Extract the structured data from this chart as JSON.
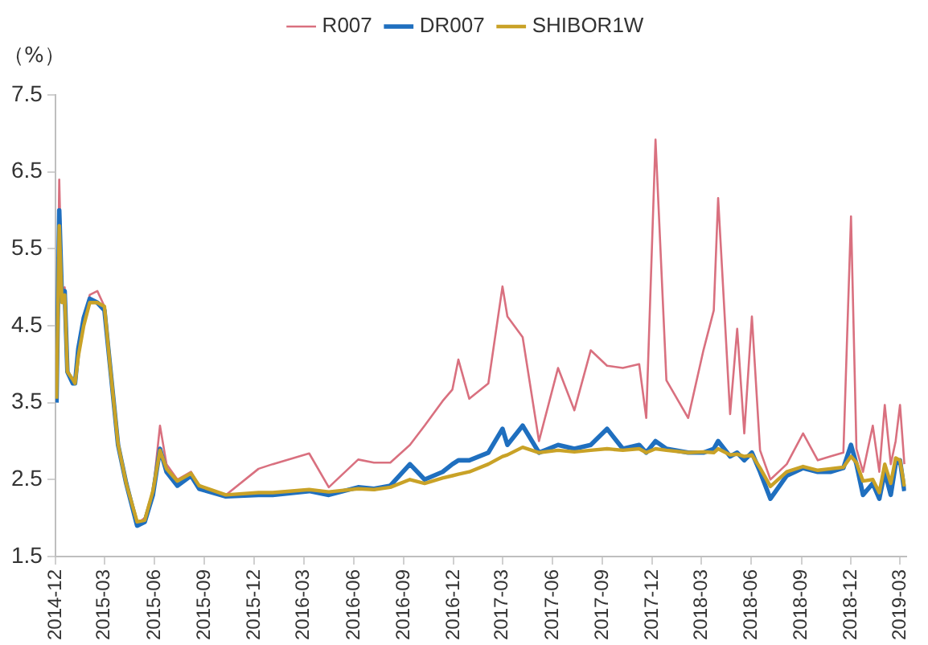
{
  "chart_data": {
    "type": "line",
    "ylabel": "（%）",
    "legend": "top",
    "grid": false,
    "marker": "none",
    "line_style": "solid",
    "xlim": [
      "2014-12-01",
      "2019-03-12"
    ],
    "xticks": [
      "2014-12",
      "2015-03",
      "2015-06",
      "2015-09",
      "2015-12",
      "2016-03",
      "2016-06",
      "2016-09",
      "2016-12",
      "2017-03",
      "2017-06",
      "2017-09",
      "2017-12",
      "2018-03",
      "2018-06",
      "2018-09",
      "2018-12",
      "2019-03"
    ],
    "ylim": [
      1.5,
      7.5
    ],
    "yticks": [
      1.5,
      2.5,
      3.5,
      4.5,
      5.5,
      6.5,
      7.5
    ],
    "x": [
      "2014-12-03",
      "2014-12-08",
      "2014-12-13",
      "2014-12-18",
      "2014-12-23",
      "2015-01-02",
      "2015-01-06",
      "2015-01-12",
      "2015-01-22",
      "2015-02-02",
      "2015-02-16",
      "2015-03-01",
      "2015-03-11",
      "2015-03-26",
      "2015-04-10",
      "2015-04-30",
      "2015-05-14",
      "2015-05-29",
      "2015-06-11",
      "2015-06-23",
      "2015-07-13",
      "2015-08-07",
      "2015-08-22",
      "2015-10-10",
      "2015-12-09",
      "2016-01-04",
      "2016-03-11",
      "2016-04-16",
      "2016-06-09",
      "2016-07-08",
      "2016-08-07",
      "2016-09-12",
      "2016-10-09",
      "2016-11-11",
      "2016-11-29",
      "2016-12-10",
      "2016-12-30",
      "2017-02-03",
      "2017-03-01",
      "2017-03-10",
      "2017-04-07",
      "2017-05-07",
      "2017-06-11",
      "2017-07-11",
      "2017-08-10",
      "2017-09-09",
      "2017-10-08",
      "2017-11-07",
      "2017-11-20",
      "2017-12-07",
      "2017-12-27",
      "2018-02-05",
      "2018-03-05",
      "2018-03-24",
      "2018-04-01",
      "2018-04-23",
      "2018-05-06",
      "2018-05-19",
      "2018-06-02",
      "2018-06-17",
      "2018-07-06",
      "2018-08-05",
      "2018-09-04",
      "2018-10-01",
      "2018-10-24",
      "2018-11-17",
      "2018-12-01",
      "2018-12-11",
      "2018-12-23",
      "2019-01-10",
      "2019-01-22",
      "2019-02-01",
      "2019-02-12",
      "2019-02-21",
      "2019-03-01",
      "2019-03-09"
    ],
    "series": [
      {
        "name": "R007",
        "color": "#d9707f",
        "values": [
          3.6,
          6.4,
          4.9,
          5.0,
          3.9,
          3.75,
          3.75,
          4.15,
          4.55,
          4.9,
          4.95,
          4.75,
          4.0,
          2.95,
          2.45,
          1.93,
          2.0,
          2.33,
          3.2,
          2.7,
          2.5,
          2.6,
          2.42,
          2.3,
          2.64,
          2.7,
          2.84,
          2.4,
          2.76,
          2.72,
          2.72,
          2.95,
          3.2,
          3.52,
          3.67,
          4.06,
          3.55,
          3.75,
          5.01,
          4.62,
          4.35,
          3.0,
          3.95,
          3.4,
          4.18,
          3.98,
          3.95,
          4.0,
          3.3,
          6.92,
          3.79,
          3.3,
          4.18,
          4.7,
          6.16,
          3.35,
          4.46,
          3.1,
          4.62,
          2.88,
          2.5,
          2.7,
          3.1,
          2.75,
          2.8,
          2.85,
          5.92,
          2.9,
          2.6,
          3.2,
          2.6,
          3.47,
          2.7,
          3.0,
          3.47,
          2.7
        ]
      },
      {
        "name": "DR007",
        "color": "#1f6fbf",
        "values": [
          3.5,
          6.0,
          4.85,
          4.95,
          3.9,
          3.75,
          3.75,
          4.2,
          4.6,
          4.85,
          4.8,
          4.7,
          4.0,
          2.95,
          2.45,
          1.9,
          1.95,
          2.3,
          2.9,
          2.6,
          2.42,
          2.55,
          2.38,
          2.28,
          2.3,
          2.3,
          2.35,
          2.3,
          2.4,
          2.38,
          2.42,
          2.7,
          2.5,
          2.6,
          2.7,
          2.75,
          2.75,
          2.85,
          3.16,
          2.95,
          3.2,
          2.85,
          2.95,
          2.9,
          2.95,
          3.16,
          2.9,
          2.95,
          2.85,
          3.0,
          2.9,
          2.85,
          2.85,
          2.9,
          3.0,
          2.8,
          2.85,
          2.75,
          2.85,
          2.6,
          2.25,
          2.55,
          2.65,
          2.6,
          2.6,
          2.65,
          2.95,
          2.7,
          2.3,
          2.45,
          2.25,
          2.6,
          2.3,
          2.7,
          2.75,
          2.35
        ]
      },
      {
        "name": "SHIBOR1W",
        "color": "#c9a227",
        "values": [
          3.55,
          5.8,
          4.8,
          4.9,
          3.9,
          3.8,
          3.75,
          4.1,
          4.5,
          4.8,
          4.8,
          4.75,
          4.0,
          2.96,
          2.45,
          1.95,
          1.97,
          2.35,
          2.88,
          2.64,
          2.48,
          2.58,
          2.42,
          2.3,
          2.33,
          2.33,
          2.37,
          2.34,
          2.38,
          2.37,
          2.4,
          2.5,
          2.45,
          2.52,
          2.55,
          2.57,
          2.6,
          2.7,
          2.8,
          2.82,
          2.92,
          2.85,
          2.88,
          2.86,
          2.88,
          2.9,
          2.88,
          2.9,
          2.85,
          2.9,
          2.88,
          2.85,
          2.86,
          2.85,
          2.9,
          2.82,
          2.83,
          2.8,
          2.82,
          2.65,
          2.41,
          2.6,
          2.67,
          2.62,
          2.64,
          2.66,
          2.8,
          2.72,
          2.48,
          2.5,
          2.33,
          2.7,
          2.45,
          2.78,
          2.75,
          2.41
        ]
      }
    ]
  }
}
